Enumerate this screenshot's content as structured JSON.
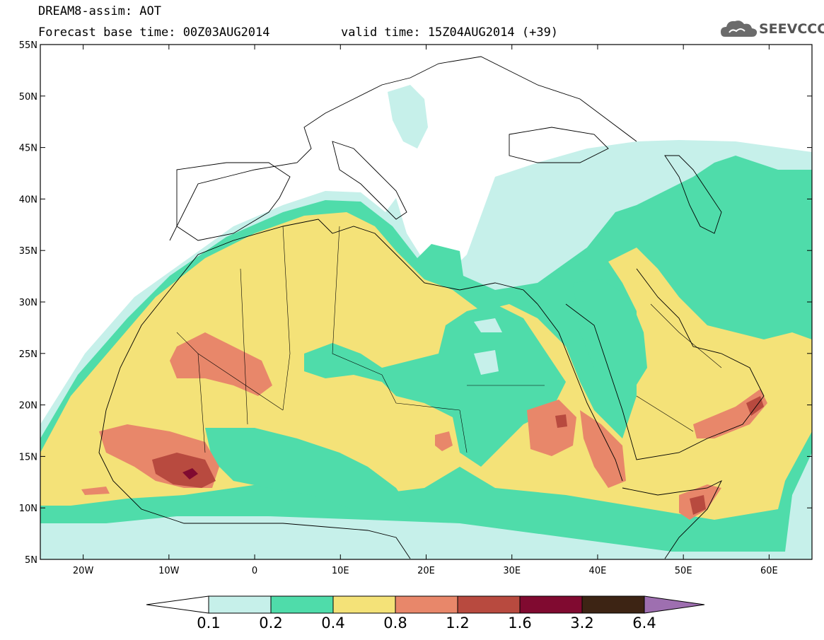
{
  "header": {
    "title": "DREAM8-assim: AOT",
    "base_time": "Forecast base time: 00Z03AUG2014",
    "valid_time": "valid time: 15Z04AUG2014 (+39)"
  },
  "logo": {
    "text": "SEEVCCC",
    "icon": "cloud-icon"
  },
  "map": {
    "projection": "lat-lon",
    "lon_range": [
      -25,
      65
    ],
    "lat_range": [
      5,
      55
    ],
    "y_ticks": [
      "55N",
      "50N",
      "45N",
      "40N",
      "35N",
      "30N",
      "25N",
      "20N",
      "15N",
      "10N",
      "5N"
    ],
    "x_ticks": [
      "20W",
      "10W",
      "0",
      "10E",
      "20E",
      "30E",
      "40E",
      "50E",
      "60E"
    ]
  },
  "colorbar": {
    "labels": [
      "0.1",
      "0.2",
      "0.4",
      "0.8",
      "1.2",
      "1.6",
      "3.2",
      "6.4"
    ],
    "colors": [
      "#c6f0ea",
      "#4fdcaa",
      "#f4e278",
      "#e8876a",
      "#b84a3f",
      "#800a30",
      "#3d2414",
      "#9e6fb0"
    ]
  }
}
